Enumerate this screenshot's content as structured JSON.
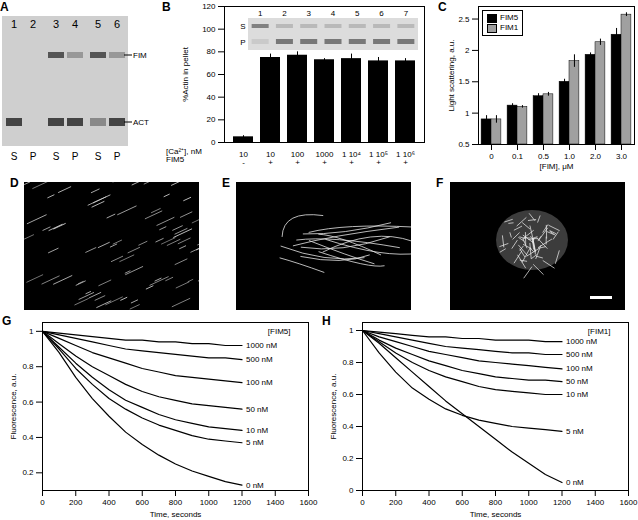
{
  "gel": {
    "title": "A",
    "lanes": [
      "1",
      "2",
      "3",
      "4",
      "5",
      "6"
    ],
    "fractions": [
      "S",
      "P",
      "S",
      "P",
      "S",
      "P"
    ],
    "bands": [
      "FIM",
      "ACT"
    ]
  },
  "micrographs": {
    "panels": [
      "D",
      "E",
      "F"
    ]
  },
  "chart_data": [
    {
      "type": "bar",
      "title": "B",
      "ylabel": "%Actin in pellet",
      "row_labels": [
        "[Ca²⁺], nM",
        "FIM5"
      ],
      "categories": [
        "10",
        "10",
        "100",
        "1000",
        "1 10⁴",
        "1 10⁵",
        "1 10⁶"
      ],
      "fim5": [
        "-",
        "+",
        "+",
        "+",
        "+",
        "+",
        "+"
      ],
      "values": [
        5,
        75,
        77,
        73,
        74,
        72,
        72
      ],
      "errors": [
        1,
        3,
        3,
        1,
        4,
        3,
        2
      ],
      "color": "#000000",
      "ylim": [
        0,
        120
      ],
      "yticks": [
        0,
        20,
        40,
        60,
        80,
        100,
        120
      ],
      "inset": {
        "lanes": [
          "1",
          "2",
          "3",
          "4",
          "5",
          "6",
          "7"
        ],
        "rows": [
          "S",
          "P"
        ]
      }
    },
    {
      "type": "bar",
      "title": "C",
      "xlabel": "[FIM], μM",
      "ylabel": "Light scattering, a.u.",
      "categories": [
        "0",
        "0.1",
        "0.5",
        "1.0",
        "2.0",
        "3.0"
      ],
      "series": [
        {
          "name": "FIM5",
          "color": "#000000",
          "values": [
            0.9,
            1.12,
            1.27,
            1.5,
            1.93,
            2.25
          ],
          "errors": [
            0.06,
            0.03,
            0.04,
            0.04,
            0.03,
            0.1
          ]
        },
        {
          "name": "FIM1",
          "color": "#a0a0a0",
          "values": [
            0.9,
            1.1,
            1.3,
            1.83,
            2.13,
            2.57
          ],
          "errors": [
            0.06,
            0.02,
            0.03,
            0.1,
            0.05,
            0.03
          ]
        }
      ],
      "ylim": [
        0.5,
        2.7
      ],
      "yticks": [
        0.5,
        1,
        1.5,
        2,
        2.5
      ],
      "legend": "top-left"
    },
    {
      "type": "line",
      "title": "G",
      "legend_title": "[FIM5]",
      "xlabel": "Time, seconds",
      "ylabel": "Fluorescence, a.u.",
      "x": [
        0,
        100,
        200,
        300,
        400,
        500,
        600,
        700,
        800,
        900,
        1000,
        1100,
        1200
      ],
      "series": [
        {
          "name": "1000 nM",
          "color": "#000000",
          "values": [
            1,
            0.99,
            0.98,
            0.97,
            0.96,
            0.95,
            0.95,
            0.94,
            0.94,
            0.93,
            0.93,
            0.92,
            0.92
          ]
        },
        {
          "name": "500 nM",
          "color": "#000000",
          "values": [
            1,
            0.98,
            0.96,
            0.94,
            0.92,
            0.9,
            0.89,
            0.88,
            0.87,
            0.86,
            0.85,
            0.85,
            0.84
          ]
        },
        {
          "name": "100 nM",
          "color": "#000000",
          "values": [
            1,
            0.96,
            0.92,
            0.88,
            0.85,
            0.82,
            0.79,
            0.77,
            0.75,
            0.74,
            0.73,
            0.72,
            0.71
          ]
        },
        {
          "name": "50 nM",
          "color": "#000000",
          "values": [
            1,
            0.93,
            0.86,
            0.8,
            0.75,
            0.7,
            0.66,
            0.63,
            0.61,
            0.59,
            0.58,
            0.57,
            0.56
          ]
        },
        {
          "name": "10 nM",
          "color": "#000000",
          "values": [
            1,
            0.91,
            0.82,
            0.74,
            0.67,
            0.61,
            0.57,
            0.53,
            0.5,
            0.48,
            0.46,
            0.45,
            0.44
          ]
        },
        {
          "name": "5 nM",
          "color": "#000000",
          "values": [
            1,
            0.9,
            0.79,
            0.7,
            0.62,
            0.56,
            0.51,
            0.47,
            0.44,
            0.41,
            0.39,
            0.38,
            0.37
          ]
        },
        {
          "name": "0 nM",
          "color": "#000000",
          "values": [
            1,
            0.88,
            0.74,
            0.62,
            0.52,
            0.43,
            0.36,
            0.3,
            0.25,
            0.21,
            0.18,
            0.15,
            0.13
          ]
        }
      ],
      "xlim": [
        0,
        1600
      ],
      "xticks": [
        0,
        200,
        400,
        600,
        800,
        1000,
        1200,
        1400,
        1600
      ],
      "ylim": [
        0.1,
        1.05
      ],
      "yticks": [
        0.2,
        0.4,
        0.6,
        0.8,
        1
      ]
    },
    {
      "type": "line",
      "title": "H",
      "legend_title": "[FIM1]",
      "xlabel": "Time, seconds",
      "ylabel": "Fluorescence, a.u.",
      "x": [
        0,
        100,
        200,
        300,
        400,
        500,
        600,
        700,
        800,
        900,
        1000,
        1100,
        1200
      ],
      "series": [
        {
          "name": "1000 nM",
          "color": "#000000",
          "values": [
            1,
            0.99,
            0.98,
            0.97,
            0.96,
            0.96,
            0.95,
            0.95,
            0.94,
            0.94,
            0.94,
            0.93,
            0.93
          ]
        },
        {
          "name": "500 nM",
          "color": "#000000",
          "values": [
            1,
            0.98,
            0.96,
            0.94,
            0.92,
            0.9,
            0.89,
            0.88,
            0.87,
            0.86,
            0.86,
            0.85,
            0.85
          ]
        },
        {
          "name": "100 nM",
          "color": "#000000",
          "values": [
            1,
            0.96,
            0.93,
            0.9,
            0.87,
            0.85,
            0.83,
            0.81,
            0.8,
            0.79,
            0.78,
            0.77,
            0.76
          ]
        },
        {
          "name": "50 nM",
          "color": "#000000",
          "values": [
            1,
            0.94,
            0.89,
            0.85,
            0.81,
            0.78,
            0.75,
            0.73,
            0.71,
            0.7,
            0.69,
            0.69,
            0.68
          ]
        },
        {
          "name": "10 nM",
          "color": "#000000",
          "values": [
            1,
            0.93,
            0.86,
            0.8,
            0.75,
            0.71,
            0.68,
            0.65,
            0.63,
            0.62,
            0.61,
            0.6,
            0.6
          ]
        },
        {
          "name": "5 nM",
          "color": "#000000",
          "values": [
            1,
            0.86,
            0.74,
            0.64,
            0.57,
            0.51,
            0.47,
            0.44,
            0.42,
            0.4,
            0.39,
            0.38,
            0.37
          ]
        },
        {
          "name": "0 nM",
          "color": "#000000",
          "values": [
            1,
            0.92,
            0.83,
            0.74,
            0.65,
            0.56,
            0.48,
            0.4,
            0.32,
            0.24,
            0.17,
            0.1,
            0.05
          ]
        }
      ],
      "xlim": [
        0,
        1600
      ],
      "xticks": [
        0,
        200,
        400,
        600,
        800,
        1000,
        1200,
        1400,
        1600
      ],
      "ylim": [
        0,
        1.05
      ],
      "yticks": [
        0,
        0.2,
        0.4,
        0.6,
        0.8,
        1
      ]
    }
  ]
}
